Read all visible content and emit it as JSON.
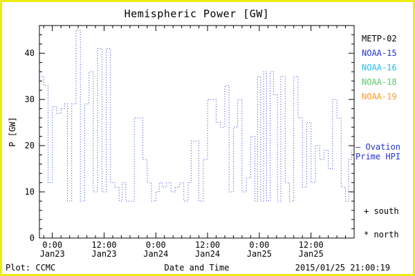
{
  "title": "Hemispheric Power [GW]",
  "ylabel": "P [GW]",
  "xlabel": "Date and Time",
  "footer": {
    "credit": "Plot: CCMC",
    "timestamp": "2015/01/25 21:00:19"
  },
  "legend": [
    {
      "label": "METP-02",
      "color": "#000000"
    },
    {
      "label": "NOAA-15",
      "color": "#2233cc"
    },
    {
      "label": "NOAA-16",
      "color": "#22bbee"
    },
    {
      "label": "NOAA-18",
      "color": "#55cc66"
    },
    {
      "label": "NOAA-19",
      "color": "#ff9922"
    }
  ],
  "annotations": {
    "ovation_line1": "— Ovation",
    "ovation_line2": "Prime HPI",
    "ovation_color": "#2233cc",
    "south_marker": "+ south",
    "north_marker": "* north"
  },
  "frame_color": "#eceb13",
  "chart_data": {
    "type": "line",
    "step": true,
    "line_style": "dotted",
    "line_color": "#2233cc",
    "title": "Hemispheric Power [GW]",
    "xlabel": "Date and Time",
    "ylabel": "P [GW]",
    "ylim": [
      0,
      46
    ],
    "xlim_hours": [
      -3,
      70
    ],
    "extend_to_hour": 70,
    "y_ticks": [
      0,
      10,
      20,
      30,
      40
    ],
    "y_minor_step": 2,
    "x_minor_step_hours": 2,
    "x_ticks": [
      {
        "hour": 0,
        "time": "0:00",
        "date": "Jan23"
      },
      {
        "hour": 12,
        "time": "12:00",
        "date": "Jan23"
      },
      {
        "hour": 24,
        "time": "0:00",
        "date": "Jan24"
      },
      {
        "hour": 36,
        "time": "12:00",
        "date": "Jan24"
      },
      {
        "hour": 48,
        "time": "0:00",
        "date": "Jan25"
      },
      {
        "hour": 60,
        "time": "12:00",
        "date": "Jan25"
      }
    ],
    "series": [
      {
        "name": "Hemispheric Power (Ovation Prime HPI)",
        "hours": [
          -3,
          -2,
          -1,
          0,
          1,
          2,
          2.8,
          3.5,
          4.5,
          5.5,
          6.5,
          7.5,
          8.5,
          9.5,
          10.5,
          11.5,
          12.5,
          13.5,
          14.5,
          15.5,
          16.2,
          17,
          18,
          19,
          20,
          21,
          22,
          23,
          24,
          24.8,
          25.5,
          26.5,
          27.5,
          28.5,
          29.5,
          30.5,
          31.5,
          32.2,
          33,
          34,
          35,
          36,
          37,
          38,
          39,
          40,
          41,
          42,
          43,
          44,
          45,
          46,
          47,
          47.6,
          48.3,
          49,
          49.7,
          50.5,
          51.3,
          52.2,
          53,
          54,
          55,
          56,
          57,
          58,
          59,
          60,
          61,
          62,
          63,
          64,
          65,
          66,
          67,
          68,
          68.7,
          69.4
        ],
        "values": [
          35,
          33,
          12,
          28.5,
          27,
          28,
          29,
          8,
          29,
          45,
          8,
          29,
          36,
          10,
          41,
          10,
          41,
          12,
          11,
          8,
          12,
          8,
          8,
          26,
          26,
          17,
          12,
          8,
          10,
          12,
          11,
          12,
          10,
          11,
          12,
          8,
          12,
          21,
          21,
          8,
          17,
          30,
          30,
          25,
          24,
          33,
          10,
          24,
          30,
          10,
          13,
          22,
          8,
          35,
          8,
          36,
          8,
          36,
          31,
          8,
          35,
          12,
          8,
          35,
          26,
          11,
          25,
          12,
          20,
          17,
          19,
          15,
          30,
          26,
          11,
          8,
          17,
          19
        ]
      }
    ]
  }
}
